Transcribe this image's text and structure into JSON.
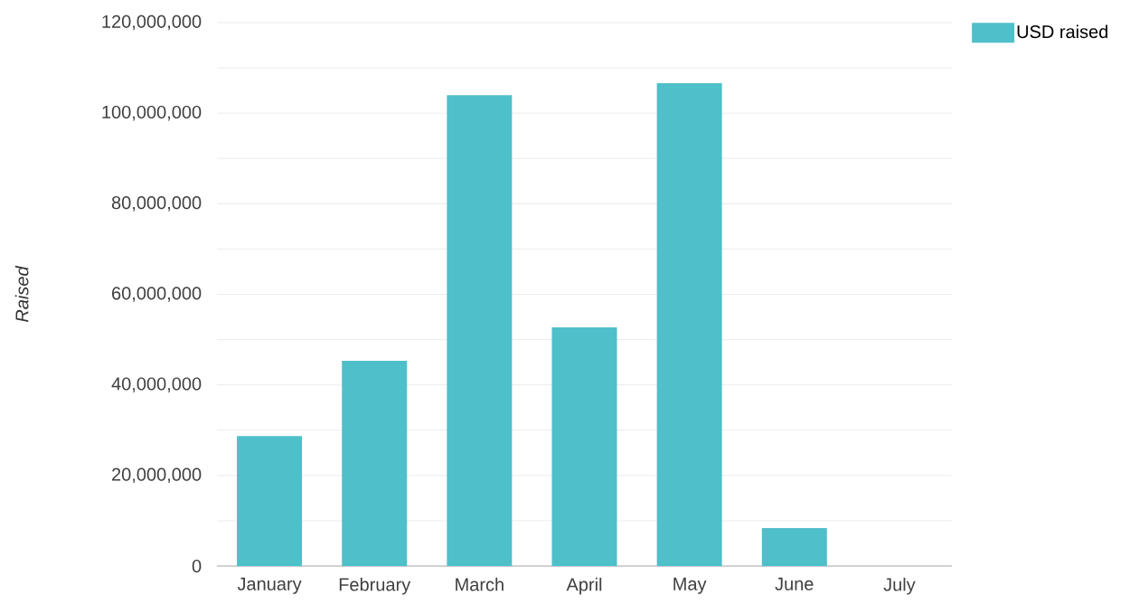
{
  "chart_data": {
    "type": "bar",
    "ylabel": "Raised",
    "categories": [
      "January",
      "February",
      "March",
      "April",
      "May",
      "June",
      "July"
    ],
    "series": [
      {
        "name": "USD raised",
        "color": "#4fbfca",
        "values": [
          28700000,
          45300000,
          104000000,
          52700000,
          106600000,
          8400000,
          0
        ]
      }
    ],
    "ylim": [
      0,
      120000000
    ],
    "yticks": [
      {
        "value": 0,
        "label": "0"
      },
      {
        "value": 10000000,
        "label": null
      },
      {
        "value": 20000000,
        "label": "20,000,000"
      },
      {
        "value": 30000000,
        "label": null
      },
      {
        "value": 40000000,
        "label": "40,000,000"
      },
      {
        "value": 50000000,
        "label": null
      },
      {
        "value": 60000000,
        "label": "60,000,000"
      },
      {
        "value": 70000000,
        "label": null
      },
      {
        "value": 80000000,
        "label": "80,000,000"
      },
      {
        "value": 90000000,
        "label": null
      },
      {
        "value": 100000000,
        "label": "100,000,000"
      },
      {
        "value": 110000000,
        "label": null
      },
      {
        "value": 120000000,
        "label": "120,000,000"
      }
    ],
    "grid": "y",
    "legend": "top right"
  }
}
